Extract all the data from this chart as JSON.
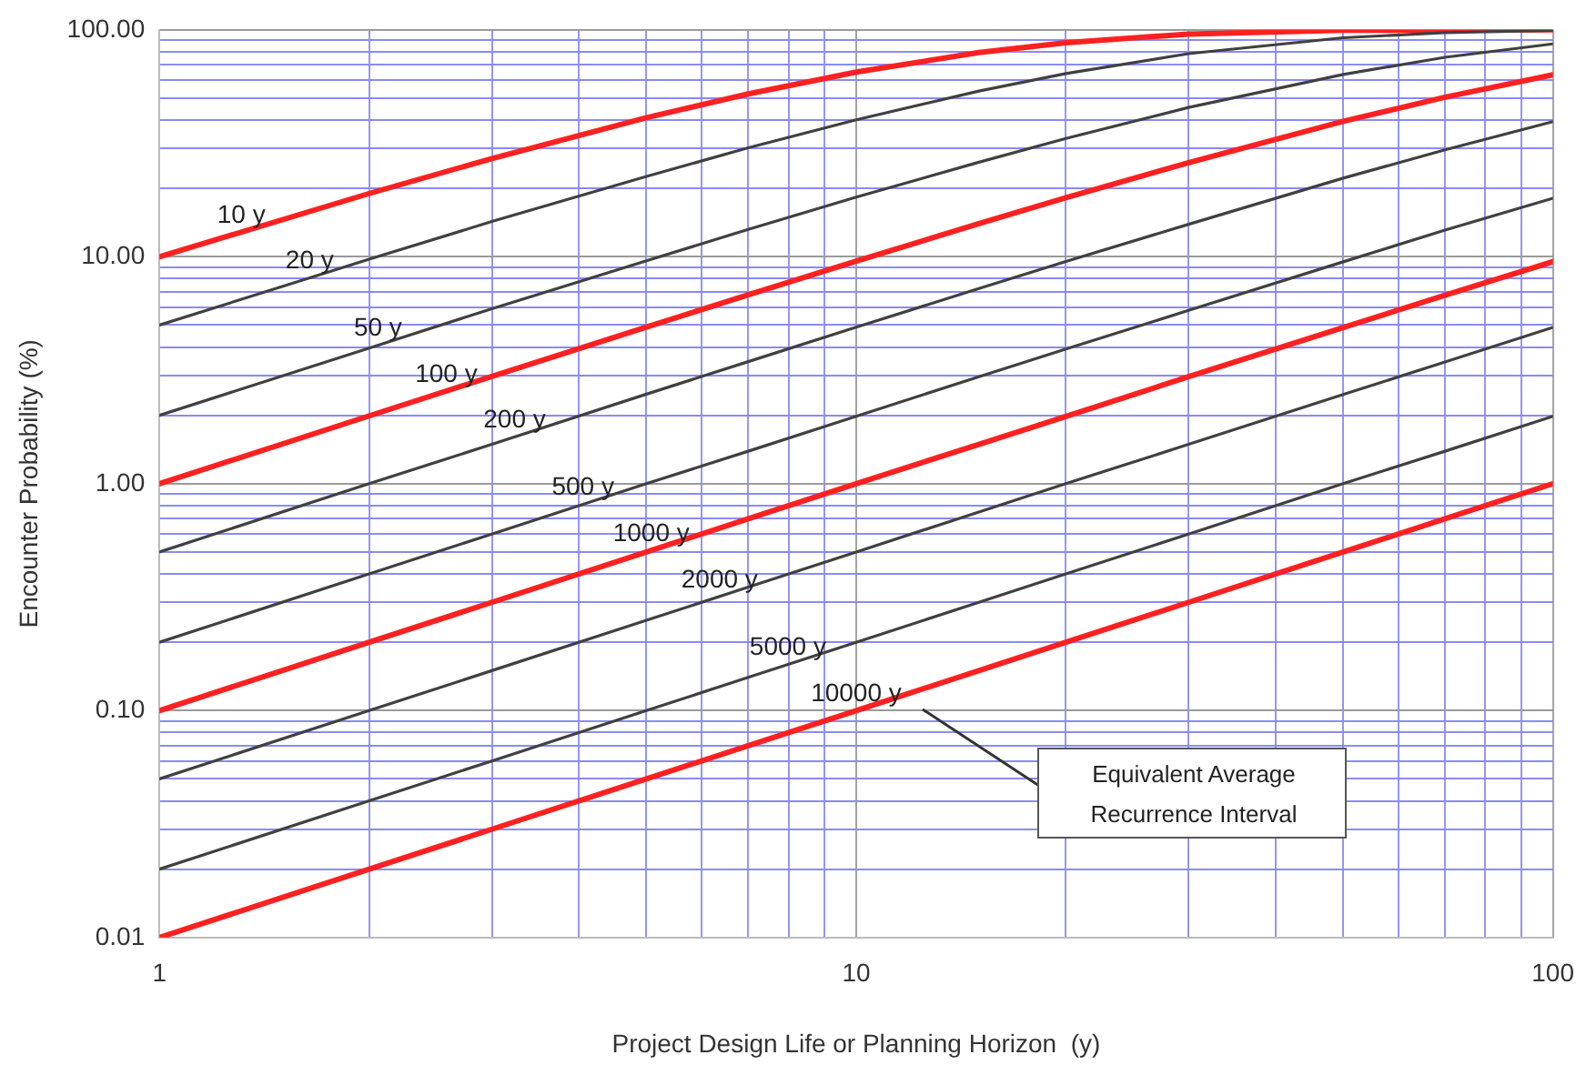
{
  "chart_data": {
    "type": "line",
    "xlabel": "Project Design Life or Planning Horizon  (y)",
    "ylabel": "Encounter Probability (%)",
    "x": [
      1,
      2,
      3,
      5,
      7,
      10,
      15,
      20,
      30,
      50,
      70,
      100
    ],
    "series": [
      {
        "name": "10 y",
        "color": "#ff2020",
        "values": [
          10,
          19,
          27.1,
          41,
          52.2,
          65.1,
          79.4,
          87.8,
          95.8,
          99.5,
          99.9,
          100
        ]
      },
      {
        "name": "20 y",
        "color": "#404040",
        "values": [
          5,
          9.75,
          14.3,
          22.6,
          30.2,
          40.1,
          53.7,
          64.2,
          78.5,
          92.3,
          97.2,
          99.4
        ]
      },
      {
        "name": "50 y",
        "color": "#404040",
        "values": [
          2,
          3.96,
          5.9,
          9.6,
          13.2,
          18.3,
          26.1,
          33.2,
          45.5,
          63.6,
          75.7,
          86.7
        ]
      },
      {
        "name": "100 y",
        "color": "#ff2020",
        "values": [
          1,
          1.99,
          2.97,
          4.9,
          6.8,
          9.56,
          14,
          18.2,
          26,
          39.5,
          50.5,
          63.4
        ]
      },
      {
        "name": "200 y",
        "color": "#404040",
        "values": [
          0.5,
          1,
          1.49,
          2.48,
          3.45,
          4.89,
          7.24,
          9.54,
          13.9,
          22.2,
          29.6,
          39.4
        ]
      },
      {
        "name": "500 y",
        "color": "#404040",
        "values": [
          0.2,
          0.4,
          0.6,
          1,
          1.39,
          1.98,
          2.96,
          3.92,
          5.8,
          9.5,
          13.1,
          18.1
        ]
      },
      {
        "name": "1000 y",
        "color": "#ff2020",
        "values": [
          0.1,
          0.2,
          0.3,
          0.5,
          0.7,
          1,
          1.49,
          1.98,
          2.96,
          4.88,
          6.76,
          9.52
        ]
      },
      {
        "name": "2000 y",
        "color": "#404040",
        "values": [
          0.05,
          0.1,
          0.15,
          0.25,
          0.35,
          0.5,
          0.75,
          1,
          1.49,
          2.47,
          3.44,
          4.88
        ]
      },
      {
        "name": "5000 y",
        "color": "#404040",
        "values": [
          0.02,
          0.04,
          0.06,
          0.1,
          0.14,
          0.2,
          0.3,
          0.4,
          0.6,
          1,
          1.39,
          1.98
        ]
      },
      {
        "name": "10000 y",
        "color": "#ff2020",
        "values": [
          0.01,
          0.02,
          0.03,
          0.05,
          0.07,
          0.1,
          0.15,
          0.2,
          0.3,
          0.5,
          0.7,
          1
        ]
      }
    ],
    "log": "xy",
    "xlim": [
      1,
      100
    ],
    "xticks": [
      1,
      {
        "value": 2,
        "label": null
      },
      {
        "value": 3,
        "label": null
      },
      {
        "value": 4,
        "label": null
      },
      {
        "value": 5,
        "label": null
      },
      {
        "value": 6,
        "label": null
      },
      {
        "value": 7,
        "label": null
      },
      {
        "value": 8,
        "label": null
      },
      {
        "value": 9,
        "label": null
      },
      10,
      {
        "value": 20,
        "label": null
      },
      {
        "value": 30,
        "label": null
      },
      {
        "value": 40,
        "label": null
      },
      {
        "value": 50,
        "label": null
      },
      {
        "value": 60,
        "label": null
      },
      {
        "value": 70,
        "label": null
      },
      {
        "value": 80,
        "label": null
      },
      {
        "value": 90,
        "label": null
      },
      100
    ],
    "ylim": [
      0.01,
      100
    ],
    "yticks": [
      {
        "value": 0.01,
        "label": "0.01"
      },
      {
        "value": 0.02,
        "label": null
      },
      {
        "value": 0.03,
        "label": null
      },
      {
        "value": 0.04,
        "label": null
      },
      {
        "value": 0.05,
        "label": null
      },
      {
        "value": 0.06,
        "label": null
      },
      {
        "value": 0.07,
        "label": null
      },
      {
        "value": 0.08,
        "label": null
      },
      {
        "value": 0.09,
        "label": null
      },
      {
        "value": 0.1,
        "label": "0.10"
      },
      {
        "value": 0.2,
        "label": null
      },
      {
        "value": 0.3,
        "label": null
      },
      {
        "value": 0.4,
        "label": null
      },
      {
        "value": 0.5,
        "label": null
      },
      {
        "value": 0.6,
        "label": null
      },
      {
        "value": 0.7,
        "label": null
      },
      {
        "value": 0.8,
        "label": null
      },
      {
        "value": 0.9,
        "label": null
      },
      {
        "value": 1,
        "label": "1.00"
      },
      {
        "value": 2,
        "label": null
      },
      {
        "value": 3,
        "label": null
      },
      {
        "value": 4,
        "label": null
      },
      {
        "value": 5,
        "label": null
      },
      {
        "value": 6,
        "label": null
      },
      {
        "value": 7,
        "label": null
      },
      {
        "value": 8,
        "label": null
      },
      {
        "value": 9,
        "label": null
      },
      {
        "value": 10,
        "label": "10.00"
      },
      {
        "value": 20,
        "label": null
      },
      {
        "value": 30,
        "label": null
      },
      {
        "value": 40,
        "label": null
      },
      {
        "value": 50,
        "label": null
      },
      {
        "value": 60,
        "label": null
      },
      {
        "value": 70,
        "label": null
      },
      {
        "value": 80,
        "label": null
      },
      {
        "value": 90,
        "label": null
      },
      {
        "value": 100,
        "label": "100.00"
      }
    ],
    "grid": true,
    "legend": false,
    "marker": "none",
    "line_style": "solid",
    "annotations": [
      "Equivalent Average Recurrence Interval"
    ]
  }
}
